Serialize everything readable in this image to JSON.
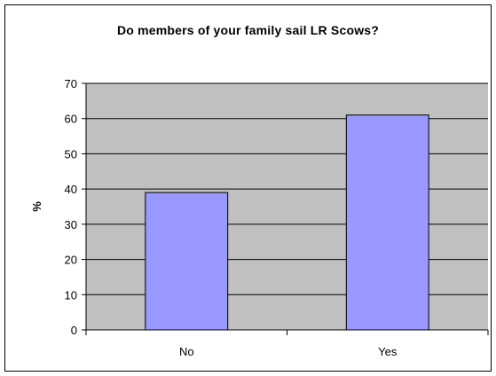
{
  "chart_data": {
    "type": "bar",
    "title": "Do members of your family sail LR Scows?",
    "xlabel": "",
    "ylabel": "%",
    "categories": [
      "No",
      "Yes"
    ],
    "values": [
      39,
      61
    ],
    "ylim": [
      0,
      70
    ],
    "yticks": [
      0,
      10,
      20,
      30,
      40,
      50,
      60,
      70
    ],
    "grid": true,
    "legend": "none",
    "colors": {
      "plot_background": "#c0c0c0",
      "bar_fill": "#9999ff",
      "bar_stroke": "#000000",
      "gridline": "#000000"
    }
  }
}
